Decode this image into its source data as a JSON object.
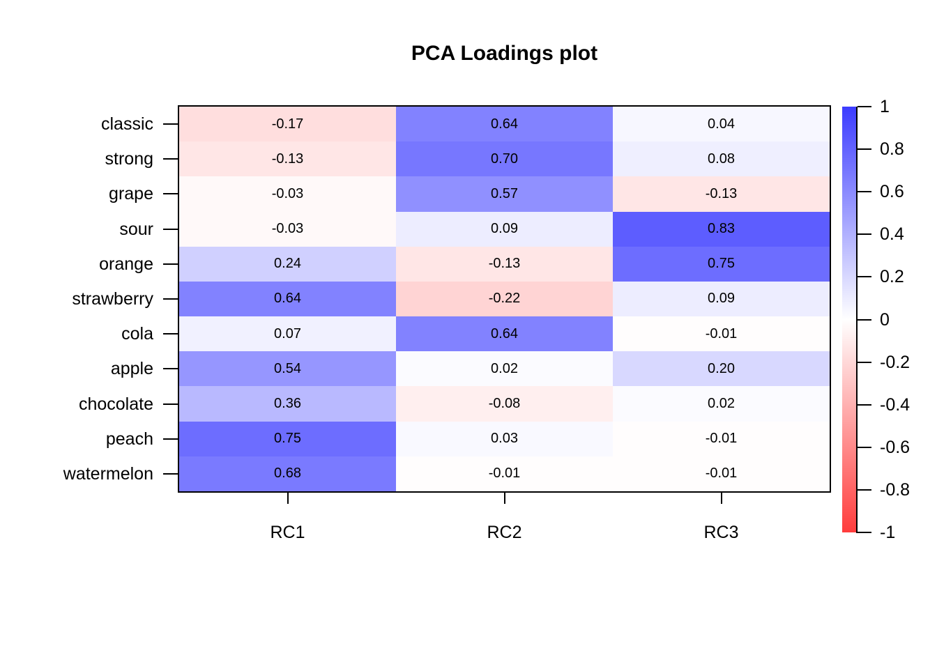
{
  "title": "PCA Loadings plot",
  "chart_data": {
    "type": "heatmap",
    "title": "PCA Loadings plot",
    "rows": [
      "classic",
      "strong",
      "grape",
      "sour",
      "orange",
      "strawberry",
      "cola",
      "apple",
      "chocolate",
      "peach",
      "watermelon"
    ],
    "columns": [
      "RC1",
      "RC2",
      "RC3"
    ],
    "values": [
      [
        -0.17,
        0.64,
        0.04
      ],
      [
        -0.13,
        0.7,
        0.08
      ],
      [
        -0.03,
        0.57,
        -0.13
      ],
      [
        -0.03,
        0.09,
        0.83
      ],
      [
        0.24,
        -0.13,
        0.75
      ],
      [
        0.64,
        -0.22,
        0.09
      ],
      [
        0.07,
        0.64,
        -0.01
      ],
      [
        0.54,
        0.02,
        0.2
      ],
      [
        0.36,
        -0.08,
        0.02
      ],
      [
        0.75,
        0.03,
        -0.01
      ],
      [
        0.68,
        -0.01,
        -0.01
      ]
    ],
    "value_labels": [
      [
        "-0.17",
        "0.64",
        "0.04"
      ],
      [
        "-0.13",
        "0.70",
        "0.08"
      ],
      [
        "-0.03",
        "0.57",
        "-0.13"
      ],
      [
        "-0.03",
        "0.09",
        "0.83"
      ],
      [
        "0.24",
        "-0.13",
        "0.75"
      ],
      [
        "0.64",
        "-0.22",
        "0.09"
      ],
      [
        "0.07",
        "0.64",
        "-0.01"
      ],
      [
        "0.54",
        "0.02",
        "0.20"
      ],
      [
        "0.36",
        "-0.08",
        "0.02"
      ],
      [
        "0.75",
        "0.03",
        "-0.01"
      ],
      [
        "0.68",
        "-0.01",
        "-0.01"
      ]
    ],
    "colorbar": {
      "position": "right",
      "min": -1,
      "max": 1,
      "tick_labels": [
        "1",
        "0.8",
        "0.6",
        "0.4",
        "0.2",
        "0",
        "-0.2",
        "-0.4",
        "-0.6",
        "-0.8",
        "-1"
      ],
      "color_positive": "#3C3CFF",
      "color_zero": "#FFFFFF",
      "color_negative": "#FF3C3C"
    },
    "grid": false,
    "cell_text_color": "#000000",
    "border_color": "#000000"
  }
}
